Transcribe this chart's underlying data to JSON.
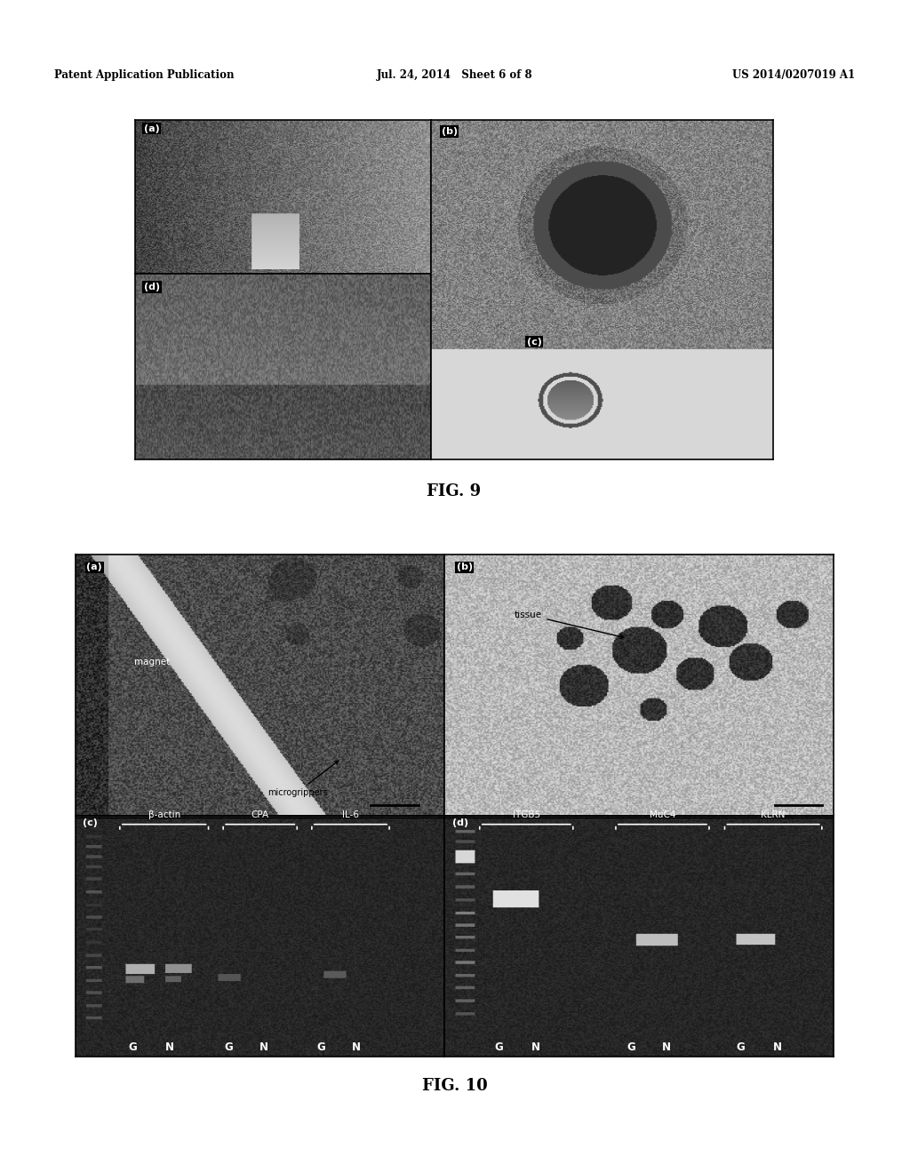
{
  "page_bg": "#ffffff",
  "header_left": "Patent Application Publication",
  "header_mid": "Jul. 24, 2014   Sheet 6 of 8",
  "header_right": "US 2014/0207019 A1",
  "fig9_label": "FIG. 9",
  "fig10_label": "FIG. 10",
  "fig9_panel_labels": [
    "(a)",
    "(b)",
    "(d)",
    "(c)"
  ],
  "fig10_panel_a_label": "(a)",
  "fig10_panel_b_label": "(b)",
  "fig10_panel_c_label": "(c)",
  "fig10_panel_d_label": "(d)",
  "annotation_microgrippers": "microgrippers",
  "annotation_magnet": "magnet",
  "annotation_tissue": "tissue",
  "fig10_c_gene_labels": [
    "β-actin",
    "CPA",
    "IL-6"
  ],
  "fig10_d_gene_labels": [
    "ITGB5",
    "MuC4",
    "KLRN"
  ],
  "fig10_gn_c": [
    "G",
    "N",
    "G",
    "N",
    "G",
    "N"
  ],
  "fig10_gn_d": [
    "G",
    "N",
    "G",
    "N",
    "G",
    "N"
  ]
}
